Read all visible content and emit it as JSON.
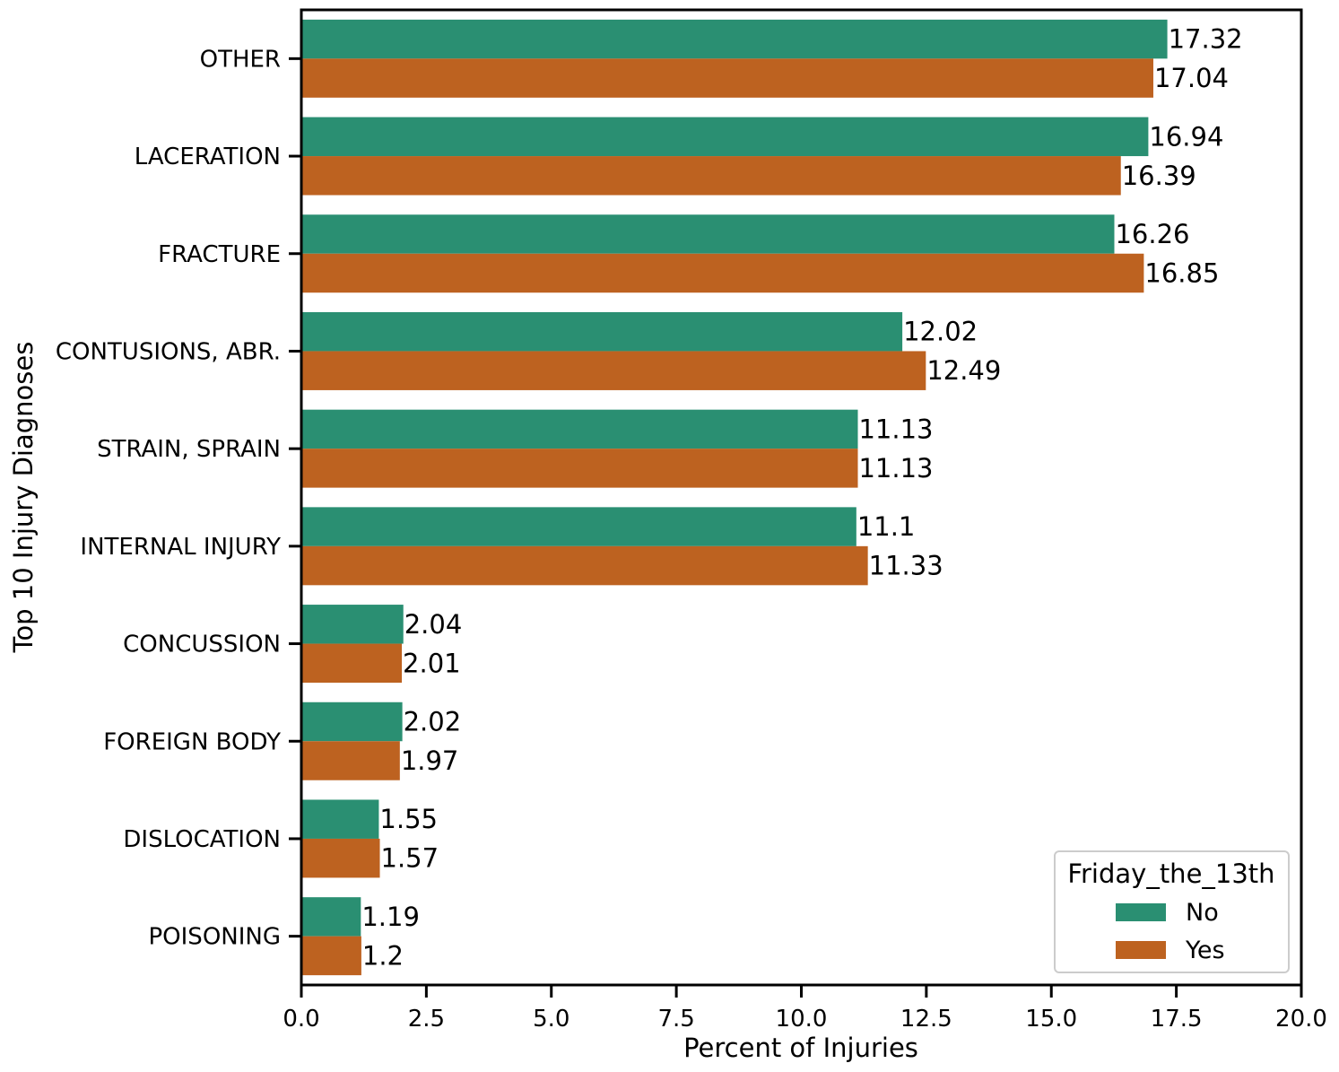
{
  "chart_data": {
    "type": "bar",
    "orientation": "horizontal",
    "categories": [
      "OTHER",
      "LACERATION",
      "FRACTURE",
      "CONTUSIONS, ABR.",
      "STRAIN, SPRAIN",
      "INTERNAL INJURY",
      "CONCUSSION",
      "FOREIGN BODY",
      "DISLOCATION",
      "POISONING"
    ],
    "series": [
      {
        "name": "No",
        "color": "#2a8f72",
        "values": [
          17.32,
          16.94,
          16.26,
          12.02,
          11.13,
          11.1,
          2.04,
          2.02,
          1.55,
          1.19
        ]
      },
      {
        "name": "Yes",
        "color": "#bd6220",
        "values": [
          17.04,
          16.39,
          16.85,
          12.49,
          11.13,
          11.33,
          2.01,
          1.97,
          1.57,
          1.2
        ]
      }
    ],
    "value_labels": [
      [
        "17.32",
        "16.94",
        "16.26",
        "12.02",
        "11.13",
        "11.1",
        "2.04",
        "2.02",
        "1.55",
        "1.19"
      ],
      [
        "17.04",
        "16.39",
        "16.85",
        "12.49",
        "11.13",
        "11.33",
        "2.01",
        "1.97",
        "1.57",
        "1.2"
      ]
    ],
    "xlabel": "Percent of Injuries",
    "ylabel": "Top 10 Injury Diagnoses",
    "xlim": [
      0,
      20
    ],
    "xticks": [
      "0.0",
      "2.5",
      "5.0",
      "7.5",
      "10.0",
      "12.5",
      "15.0",
      "17.5",
      "20.0"
    ],
    "grid": false,
    "legend": {
      "title": "Friday_the_13th",
      "position": "bottom-right"
    }
  }
}
